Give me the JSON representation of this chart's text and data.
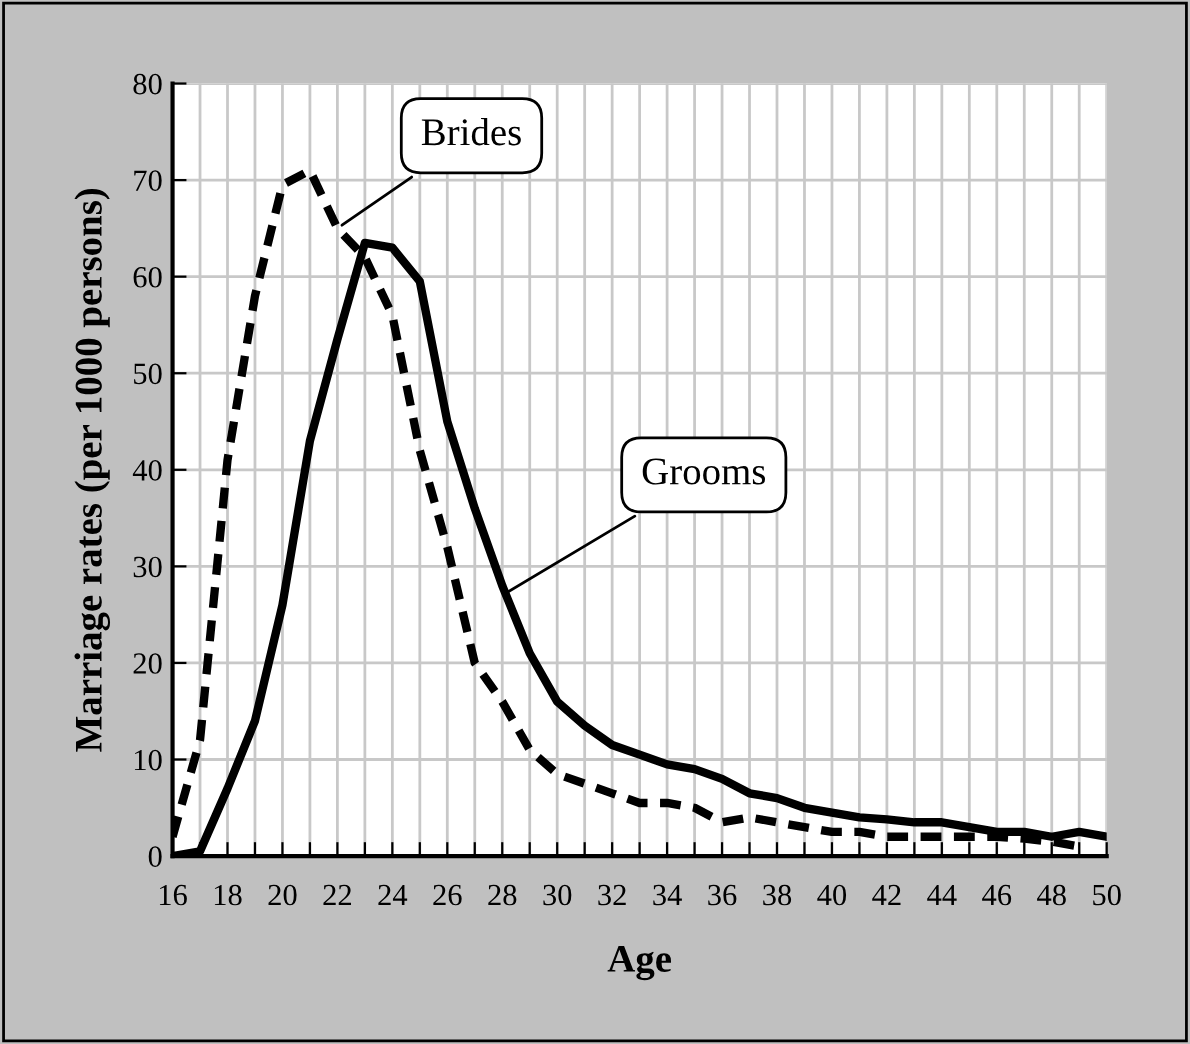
{
  "chart_data": {
    "type": "line",
    "xlabel": "Age",
    "ylabel": "Marriage rates (per 1000 persons)",
    "xlim": [
      16,
      50
    ],
    "ylim": [
      0,
      80
    ],
    "xticks": [
      16,
      {
        "value": 17,
        "label": null
      },
      18,
      {
        "value": 19,
        "label": null
      },
      20,
      {
        "value": 21,
        "label": null
      },
      22,
      {
        "value": 23,
        "label": null
      },
      24,
      {
        "value": 25,
        "label": null
      },
      26,
      {
        "value": 27,
        "label": null
      },
      28,
      {
        "value": 29,
        "label": null
      },
      30,
      {
        "value": 31,
        "label": null
      },
      32,
      {
        "value": 33,
        "label": null
      },
      34,
      {
        "value": 35,
        "label": null
      },
      36,
      {
        "value": 37,
        "label": null
      },
      38,
      {
        "value": 39,
        "label": null
      },
      40,
      {
        "value": 41,
        "label": null
      },
      42,
      {
        "value": 43,
        "label": null
      },
      44,
      {
        "value": 45,
        "label": null
      },
      46,
      {
        "value": 47,
        "label": null
      },
      48,
      {
        "value": 49,
        "label": null
      },
      50
    ],
    "yticks": [
      0,
      10,
      20,
      30,
      40,
      50,
      60,
      70,
      80
    ],
    "grid": true,
    "legend": false,
    "series": [
      {
        "color": "#000000",
        "line_style": "solid",
        "x": [
          16,
          17,
          18,
          19,
          20,
          21,
          22,
          23,
          24,
          25,
          26,
          27,
          28,
          29,
          30,
          31,
          32,
          33,
          34,
          35,
          36,
          37,
          38,
          39,
          40,
          41,
          42,
          43,
          44,
          45,
          46,
          47,
          48,
          49,
          50
        ],
        "values": [
          0,
          0.5,
          7,
          14,
          26,
          43,
          53.5,
          63.5,
          63,
          59.5,
          45,
          36,
          28,
          21,
          16,
          13.5,
          11.5,
          10.5,
          9.5,
          9,
          8,
          6.5,
          6,
          5,
          4.5,
          4,
          3.8,
          3.5,
          3.5,
          3,
          2.5,
          2.5,
          2,
          2.5,
          2
        ]
      },
      {
        "color": "#000000",
        "line_style": "dashed",
        "x": [
          16,
          17,
          18,
          19,
          20,
          21,
          22,
          23,
          24,
          25,
          26,
          27,
          28,
          29,
          30,
          31,
          32,
          33,
          34,
          35,
          36,
          37,
          38,
          39,
          40,
          41,
          42,
          43,
          44,
          45,
          46,
          47,
          48,
          49
        ],
        "values": [
          2,
          12,
          41,
          58,
          69.5,
          71,
          65,
          62,
          56,
          42,
          32,
          20,
          16,
          11,
          8.5,
          7.5,
          6.5,
          5.5,
          5.5,
          5,
          3.5,
          4,
          3.5,
          3,
          2.5,
          2.5,
          2,
          2,
          2,
          2,
          2,
          1.8,
          1.5,
          1
        ]
      }
    ],
    "annotations": [
      {
        "text": "Brides",
        "x": 22,
        "y": 65
      },
      {
        "text": "Grooms",
        "x": 28,
        "y": 27
      }
    ]
  }
}
